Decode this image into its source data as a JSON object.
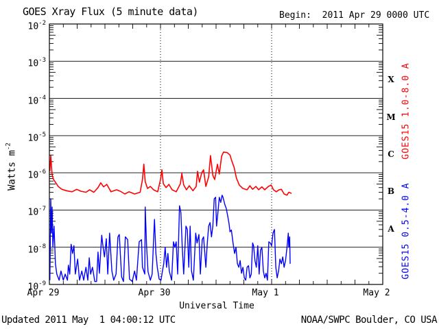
{
  "header": {
    "title": "GOES Xray Flux (5 minute data)",
    "begin_label": "Begin:  2011 Apr 29 0000 UTC"
  },
  "footer": {
    "updated": "Updated 2011 May  1 04:00:12 UTC",
    "source": "NOAA/SWPC Boulder, CO USA"
  },
  "colors": {
    "long_band": "#ff0000",
    "short_band": "#0000ff",
    "axis": "#000000",
    "background": "#ffffff"
  },
  "chart_data": {
    "type": "line",
    "title": "GOES Xray Flux (5 minute data)",
    "xlabel": "Universal Time",
    "ylabel": "Watts m-2",
    "ylabel_main": "Watts m",
    "ylabel_sup": "-2",
    "y_scale": "log",
    "ylim": [
      1e-09,
      0.01
    ],
    "x_range_hours": [
      0,
      72
    ],
    "x_tick_hours": [
      0,
      24,
      48,
      72
    ],
    "x_tick_labels": [
      "Apr 29",
      "Apr 30",
      "May 1",
      "May 2"
    ],
    "x_minor_tick_hours": 3,
    "day_gridline_hours": [
      24,
      48
    ],
    "y_tick_exponents": [
      -2,
      -3,
      -4,
      -5,
      -6,
      -7,
      -8,
      -9
    ],
    "flare_classes": [
      {
        "label": "X",
        "mid_exponent": -3.5
      },
      {
        "label": "M",
        "mid_exponent": -4.5
      },
      {
        "label": "C",
        "mid_exponent": -5.5
      },
      {
        "label": "B",
        "mid_exponent": -6.5
      },
      {
        "label": "A",
        "mid_exponent": -7.5
      }
    ],
    "grid": "horizontal solid lines at each decade; dotted vertical lines at day boundaries",
    "legend_position": "right side, rotated",
    "series": [
      {
        "name": "GOES15 1.0-8.0 A",
        "color": "#ff0000",
        "points": [
          [
            0.1,
            1.1e-06
          ],
          [
            0.3,
            2.9e-06
          ],
          [
            0.6,
            8.8e-07
          ],
          [
            0.9,
            6.6e-07
          ],
          [
            1.3,
            5.6e-07
          ],
          [
            1.9,
            4.3e-07
          ],
          [
            2.7,
            3.6e-07
          ],
          [
            3.7,
            3.3e-07
          ],
          [
            4.9,
            3.1e-07
          ],
          [
            5.9,
            3.6e-07
          ],
          [
            6.8,
            3.2e-07
          ],
          [
            7.9,
            3e-07
          ],
          [
            8.7,
            3.5e-07
          ],
          [
            9.6,
            3e-07
          ],
          [
            10.5,
            4e-07
          ],
          [
            11.1,
            5.4e-07
          ],
          [
            11.7,
            4.2e-07
          ],
          [
            12.4,
            4.9e-07
          ],
          [
            13.3,
            3.1e-07
          ],
          [
            14.5,
            3.5e-07
          ],
          [
            15.3,
            3.2e-07
          ],
          [
            16.3,
            2.7e-07
          ],
          [
            17.2,
            3.1e-07
          ],
          [
            18.4,
            2.7e-07
          ],
          [
            19.6,
            3e-07
          ],
          [
            20.1,
            6.6e-07
          ],
          [
            20.4,
            1.7e-06
          ],
          [
            20.7,
            5.8e-07
          ],
          [
            21.2,
            3.8e-07
          ],
          [
            21.8,
            4.3e-07
          ],
          [
            22.5,
            3.5e-07
          ],
          [
            23.4,
            3.1e-07
          ],
          [
            24.0,
            6.6e-07
          ],
          [
            24.3,
            1.2e-06
          ],
          [
            24.6,
            5.1e-07
          ],
          [
            25.2,
            4e-07
          ],
          [
            25.8,
            4.9e-07
          ],
          [
            26.5,
            3.5e-07
          ],
          [
            27.4,
            3.1e-07
          ],
          [
            28.3,
            5.1e-07
          ],
          [
            28.6,
            9.6e-07
          ],
          [
            29.0,
            4.7e-07
          ],
          [
            29.6,
            3.5e-07
          ],
          [
            30.2,
            4.5e-07
          ],
          [
            31.0,
            3.3e-07
          ],
          [
            31.7,
            4.3e-07
          ],
          [
            32.0,
            1.1e-06
          ],
          [
            32.4,
            5.6e-07
          ],
          [
            32.9,
            1e-06
          ],
          [
            33.3,
            1.2e-06
          ],
          [
            33.8,
            4.3e-07
          ],
          [
            34.4,
            7.8e-07
          ],
          [
            34.8,
            2.9e-06
          ],
          [
            35.3,
            8.5e-07
          ],
          [
            35.7,
            6.6e-07
          ],
          [
            36.3,
            1.7e-06
          ],
          [
            36.7,
            9.3e-07
          ],
          [
            37.2,
            2.8e-06
          ],
          [
            37.6,
            3.6e-06
          ],
          [
            38.4,
            3.5e-06
          ],
          [
            39.0,
            3e-06
          ],
          [
            39.4,
            2.1e-06
          ],
          [
            39.9,
            1.4e-06
          ],
          [
            40.4,
            7.2e-07
          ],
          [
            41.0,
            4.7e-07
          ],
          [
            41.8,
            3.8e-07
          ],
          [
            42.7,
            3.5e-07
          ],
          [
            43.3,
            4.5e-07
          ],
          [
            43.9,
            3.6e-07
          ],
          [
            44.6,
            4.3e-07
          ],
          [
            45.2,
            3.5e-07
          ],
          [
            45.9,
            4.2e-07
          ],
          [
            46.5,
            3.5e-07
          ],
          [
            47.3,
            4.3e-07
          ],
          [
            47.9,
            4.7e-07
          ],
          [
            48.4,
            3.5e-07
          ],
          [
            49.0,
            3.1e-07
          ],
          [
            49.6,
            3.5e-07
          ],
          [
            50.1,
            3.6e-07
          ],
          [
            50.7,
            2.7e-07
          ],
          [
            51.3,
            2.5e-07
          ],
          [
            51.7,
            3e-07
          ],
          [
            52.3,
            2.8e-07
          ]
        ]
      },
      {
        "name": "GOES15 0.5-4.0 A",
        "color": "#0000ff",
        "points": [
          [
            0.1,
            1.3e-09
          ],
          [
            0.3,
            2e-07
          ],
          [
            0.45,
            2.4e-08
          ],
          [
            0.6,
            1.2e-07
          ],
          [
            0.75,
            1e-08
          ],
          [
            1.0,
            3.7e-08
          ],
          [
            1.3,
            3.6e-09
          ],
          [
            1.6,
            1.9e-09
          ],
          [
            2.1,
            1.3e-09
          ],
          [
            2.5,
            2.3e-09
          ],
          [
            3.0,
            1.3e-09
          ],
          [
            3.4,
            1.9e-09
          ],
          [
            3.9,
            1.3e-09
          ],
          [
            4.1,
            3.3e-09
          ],
          [
            4.4,
            1.9e-09
          ],
          [
            4.7,
            1.2e-08
          ],
          [
            5.0,
            6.8e-09
          ],
          [
            5.3,
            1.1e-08
          ],
          [
            5.6,
            1.9e-09
          ],
          [
            6.1,
            4.8e-09
          ],
          [
            6.5,
            1.3e-09
          ],
          [
            7.0,
            2.3e-09
          ],
          [
            7.4,
            1.3e-09
          ],
          [
            7.9,
            2.9e-09
          ],
          [
            8.3,
            1.3e-09
          ],
          [
            8.6,
            5.2e-09
          ],
          [
            8.9,
            1.9e-09
          ],
          [
            9.3,
            2.9e-09
          ],
          [
            9.8,
            1.2e-09
          ],
          [
            10.2,
            1.2e-09
          ],
          [
            10.5,
            7.4e-09
          ],
          [
            10.8,
            2e-09
          ],
          [
            11.3,
            2.1e-08
          ],
          [
            11.6,
            1e-08
          ],
          [
            11.9,
            5.5e-09
          ],
          [
            12.3,
            1.7e-08
          ],
          [
            12.6,
            1.9e-09
          ],
          [
            13.0,
            2.4e-08
          ],
          [
            13.5,
            2.3e-09
          ],
          [
            13.9,
            1.3e-09
          ],
          [
            14.4,
            1.9e-09
          ],
          [
            14.8,
            1.9e-08
          ],
          [
            15.1,
            2.2e-08
          ],
          [
            15.6,
            1.6e-09
          ],
          [
            16.0,
            1.2e-09
          ],
          [
            16.4,
            1.9e-08
          ],
          [
            16.9,
            1.6e-08
          ],
          [
            17.3,
            1.4e-09
          ],
          [
            17.9,
            1.2e-09
          ],
          [
            18.4,
            2.3e-09
          ],
          [
            18.8,
            1.3e-09
          ],
          [
            19.4,
            1.4e-08
          ],
          [
            19.9,
            1.6e-08
          ],
          [
            20.1,
            2.9e-09
          ],
          [
            20.6,
            1.9e-09
          ],
          [
            20.7,
            1.2e-07
          ],
          [
            21.0,
            1e-08
          ],
          [
            21.3,
            2.2e-09
          ],
          [
            21.8,
            1.3e-09
          ],
          [
            22.2,
            1.9e-09
          ],
          [
            22.7,
            5.6e-08
          ],
          [
            23.0,
            6.8e-09
          ],
          [
            23.3,
            2.9e-09
          ],
          [
            23.7,
            1.4e-09
          ],
          [
            24.1,
            1.3e-09
          ],
          [
            24.4,
            2.2e-09
          ],
          [
            24.7,
            3.6e-09
          ],
          [
            25.0,
            1e-08
          ],
          [
            25.3,
            2.9e-09
          ],
          [
            25.6,
            6.8e-09
          ],
          [
            25.9,
            2.3e-09
          ],
          [
            26.4,
            1.3e-09
          ],
          [
            26.8,
            1.4e-08
          ],
          [
            27.1,
            1e-08
          ],
          [
            27.4,
            1.4e-08
          ],
          [
            27.7,
            1.9e-09
          ],
          [
            28.1,
            1.3e-07
          ],
          [
            28.4,
            8.6e-08
          ],
          [
            28.7,
            1e-08
          ],
          [
            29.0,
            1.9e-09
          ],
          [
            29.5,
            3.7e-08
          ],
          [
            29.8,
            3e-08
          ],
          [
            30.1,
            2.9e-09
          ],
          [
            30.4,
            3.7e-08
          ],
          [
            30.7,
            2.3e-09
          ],
          [
            31.1,
            1.3e-09
          ],
          [
            31.6,
            2.4e-08
          ],
          [
            31.9,
            1.3e-08
          ],
          [
            32.3,
            2.2e-08
          ],
          [
            32.6,
            1.9e-09
          ],
          [
            33.0,
            1.6e-08
          ],
          [
            33.3,
            1.9e-08
          ],
          [
            33.8,
            2.9e-09
          ],
          [
            34.1,
            1.3e-08
          ],
          [
            34.4,
            3.7e-08
          ],
          [
            34.7,
            4.6e-08
          ],
          [
            35.0,
            1.9e-08
          ],
          [
            35.3,
            3.7e-08
          ],
          [
            35.6,
            2e-07
          ],
          [
            35.9,
            2.2e-07
          ],
          [
            36.1,
            3.7e-08
          ],
          [
            36.4,
            8.6e-08
          ],
          [
            36.7,
            2.2e-07
          ],
          [
            37.0,
            1.6e-07
          ],
          [
            37.3,
            2.5e-07
          ],
          [
            37.5,
            2.2e-07
          ],
          [
            37.9,
            1.4e-07
          ],
          [
            38.2,
            1.1e-07
          ],
          [
            38.5,
            7e-08
          ],
          [
            38.8,
            4.3e-08
          ],
          [
            39.0,
            2.6e-08
          ],
          [
            39.3,
            2.9e-08
          ],
          [
            39.7,
            1.2e-08
          ],
          [
            40.0,
            6.8e-09
          ],
          [
            40.3,
            1e-08
          ],
          [
            40.6,
            3.6e-09
          ],
          [
            40.9,
            2.9e-09
          ],
          [
            41.2,
            4.4e-09
          ],
          [
            41.5,
            2e-09
          ],
          [
            41.8,
            2.9e-09
          ],
          [
            42.1,
            1.5e-09
          ],
          [
            42.4,
            1.3e-09
          ],
          [
            42.7,
            2.9e-09
          ],
          [
            43.0,
            3.2e-09
          ],
          [
            43.3,
            1.5e-09
          ],
          [
            43.6,
            1.9e-09
          ],
          [
            43.9,
            1.3e-08
          ],
          [
            44.1,
            1.1e-08
          ],
          [
            44.4,
            4.4e-09
          ],
          [
            44.7,
            2.9e-09
          ],
          [
            45.0,
            1.1e-08
          ],
          [
            45.3,
            1.9e-09
          ],
          [
            45.6,
            8.3e-09
          ],
          [
            45.9,
            1e-08
          ],
          [
            46.2,
            2.3e-09
          ],
          [
            46.5,
            1.5e-09
          ],
          [
            46.8,
            2e-09
          ],
          [
            47.1,
            1.3e-09
          ],
          [
            47.4,
            1.4e-08
          ],
          [
            47.7,
            1.3e-08
          ],
          [
            48.0,
            1.1e-08
          ],
          [
            48.3,
            2.4e-08
          ],
          [
            48.6,
            3e-08
          ],
          [
            48.9,
            2.9e-09
          ],
          [
            49.2,
            1.5e-09
          ],
          [
            49.5,
            2.3e-09
          ],
          [
            49.8,
            4.8e-09
          ],
          [
            50.1,
            3.6e-09
          ],
          [
            50.4,
            5.5e-09
          ],
          [
            50.7,
            2.9e-09
          ],
          [
            51.0,
            4.4e-09
          ],
          [
            51.3,
            9.5e-09
          ],
          [
            51.6,
            2.4e-08
          ],
          [
            51.7,
            1e-08
          ],
          [
            51.9,
            1.9e-08
          ],
          [
            52.0,
            3.6e-09
          ]
        ]
      }
    ]
  }
}
